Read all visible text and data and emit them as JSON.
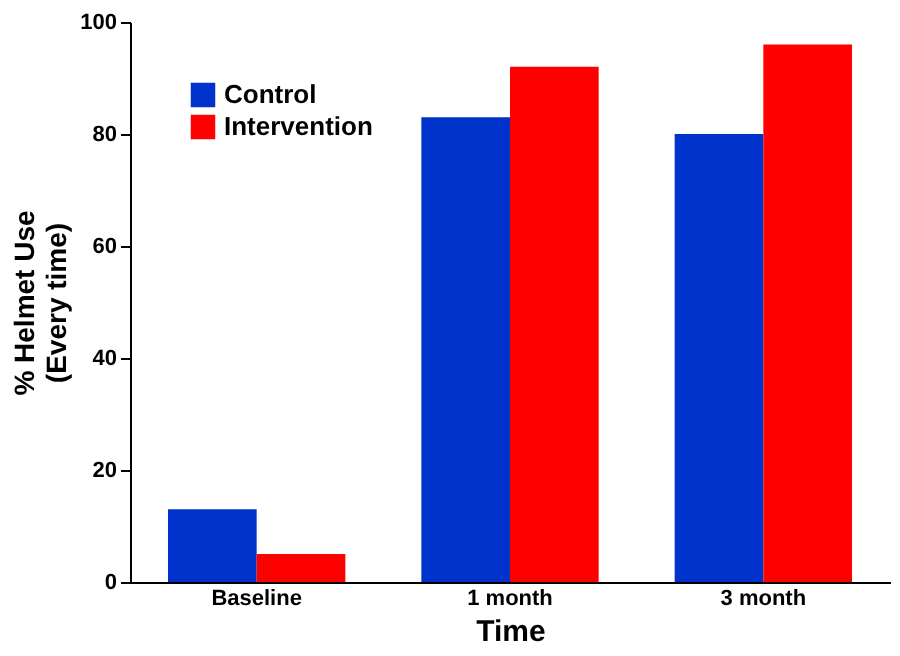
{
  "chart_data": {
    "type": "bar",
    "xlabel": "Time",
    "ylabel": "% Helmet Use\n(Every time)",
    "categories": [
      "Baseline",
      "1 month",
      "3 month"
    ],
    "series": [
      {
        "name": "Control",
        "color": "#0033cc",
        "values": [
          13,
          83,
          80
        ]
      },
      {
        "name": "Intervention",
        "color": "#ff0000",
        "values": [
          5,
          92,
          96
        ]
      }
    ],
    "ylim": [
      0,
      100
    ],
    "yticks": [
      0,
      20,
      40,
      60,
      80,
      100
    ],
    "grid": false,
    "legend": "top left"
  }
}
